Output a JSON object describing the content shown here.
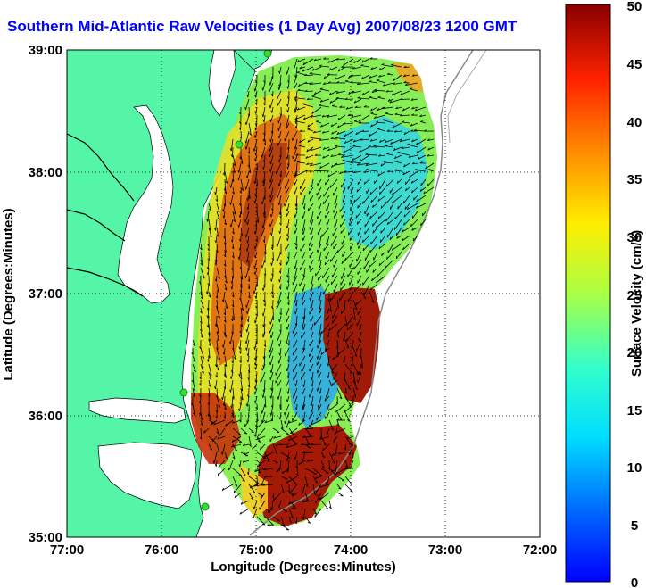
{
  "title": "Southern Mid-Atlantic Raw Velocities (1 Day Avg) 2007/08/23 1200 GMT",
  "x_axis": {
    "label": "Longitude (Degrees:Minutes)",
    "ticks": [
      "77:00",
      "76:00",
      "75:00",
      "74:00",
      "73:00",
      "72:00"
    ]
  },
  "y_axis": {
    "label": "Latitude (Degrees:Minutes)",
    "ticks": [
      "39:00",
      "38:00",
      "37:00",
      "36:00",
      "35:00"
    ]
  },
  "colorbar": {
    "label": "Surface Velocity (cm/s)",
    "ticks": [
      "50",
      "45",
      "40",
      "35",
      "30",
      "25",
      "20",
      "15",
      "10",
      "5",
      "0"
    ],
    "range": [
      0,
      50
    ],
    "colormap": "jet"
  },
  "colors": {
    "land": "#55f5a7",
    "title": "#0000ff",
    "station": "#33dd33",
    "grid": "#000000"
  },
  "stations": 4
}
